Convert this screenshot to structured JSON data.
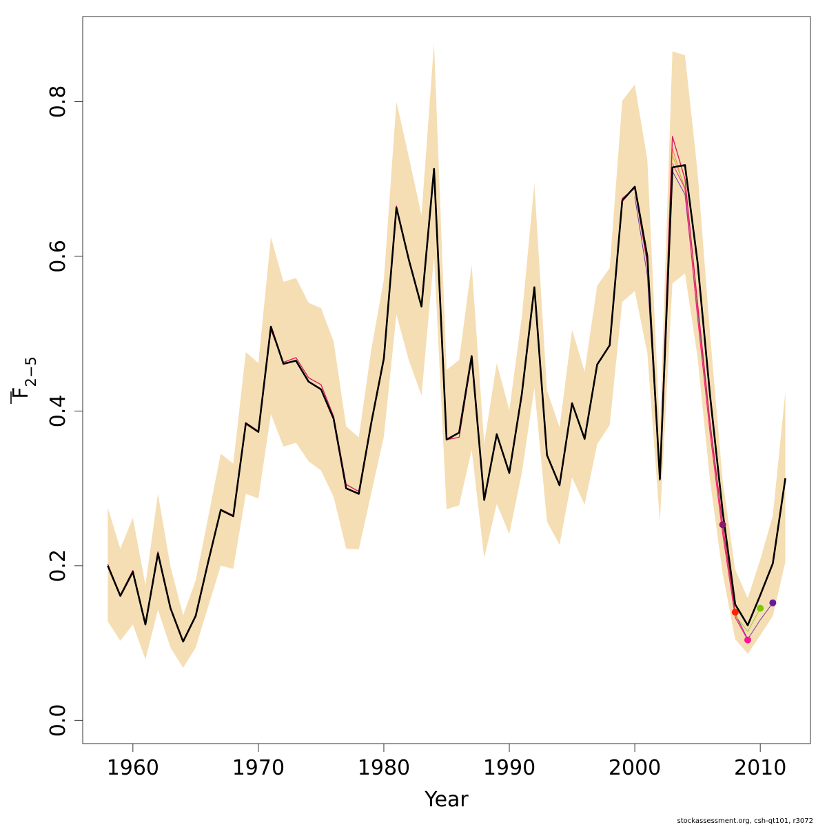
{
  "chart_data": {
    "type": "line",
    "xlabel": "Year",
    "ylabel_main": "F",
    "ylabel_subscript": "2−5",
    "xlim": [
      1956,
      2014
    ],
    "ylim": [
      -0.03,
      0.91
    ],
    "x_ticks": [
      1960,
      1970,
      1980,
      1990,
      2000,
      2010
    ],
    "x_tick_labels": [
      "1960",
      "1970",
      "1980",
      "1990",
      "2000",
      "2010"
    ],
    "y_ticks": [
      0.0,
      0.2,
      0.4,
      0.6,
      0.8
    ],
    "y_tick_labels": [
      "0.0",
      "0.2",
      "0.4",
      "0.6",
      "0.8"
    ],
    "grid": false,
    "band_color": "#f5deb3",
    "band": {
      "x": [
        1958,
        1959,
        1960,
        1961,
        1962,
        1963,
        1964,
        1965,
        1966,
        1967,
        1968,
        1969,
        1970,
        1971,
        1972,
        1973,
        1974,
        1975,
        1976,
        1977,
        1978,
        1979,
        1980,
        1981,
        1982,
        1983,
        1984,
        1985,
        1986,
        1987,
        1988,
        1989,
        1990,
        1991,
        1992,
        1993,
        1994,
        1995,
        1996,
        1997,
        1998,
        1999,
        2000,
        2001,
        2002,
        2003,
        2004,
        2005,
        2006,
        2007,
        2008,
        2009,
        2010,
        2011,
        2012
      ],
      "lower": [
        0.128,
        0.103,
        0.124,
        0.079,
        0.143,
        0.094,
        0.068,
        0.094,
        0.147,
        0.2,
        0.196,
        0.293,
        0.287,
        0.396,
        0.354,
        0.359,
        0.335,
        0.323,
        0.289,
        0.222,
        0.221,
        0.294,
        0.367,
        0.525,
        0.465,
        0.42,
        0.6,
        0.273,
        0.278,
        0.35,
        0.21,
        0.28,
        0.241,
        0.32,
        0.43,
        0.257,
        0.227,
        0.314,
        0.279,
        0.357,
        0.382,
        0.541,
        0.555,
        0.475,
        0.257,
        0.565,
        0.578,
        0.47,
        0.31,
        0.19,
        0.105,
        0.086,
        0.11,
        0.135,
        0.205
      ],
      "upper": [
        0.275,
        0.222,
        0.262,
        0.175,
        0.293,
        0.199,
        0.136,
        0.181,
        0.263,
        0.345,
        0.332,
        0.476,
        0.462,
        0.625,
        0.567,
        0.572,
        0.54,
        0.533,
        0.49,
        0.38,
        0.366,
        0.48,
        0.57,
        0.8,
        0.728,
        0.653,
        0.876,
        0.453,
        0.466,
        0.589,
        0.358,
        0.462,
        0.401,
        0.522,
        0.694,
        0.427,
        0.379,
        0.505,
        0.451,
        0.562,
        0.585,
        0.801,
        0.822,
        0.725,
        0.375,
        0.865,
        0.86,
        0.71,
        0.5,
        0.31,
        0.195,
        0.158,
        0.208,
        0.265,
        0.425
      ]
    },
    "series": [
      {
        "color": "#000000",
        "width": 2.6,
        "x": [
          1958,
          1959,
          1960,
          1961,
          1962,
          1963,
          1964,
          1965,
          1966,
          1967,
          1968,
          1969,
          1970,
          1971,
          1972,
          1973,
          1974,
          1975,
          1976,
          1977,
          1978,
          1979,
          1980,
          1981,
          1982,
          1983,
          1984,
          1985,
          1986,
          1987,
          1988,
          1989,
          1990,
          1991,
          1992,
          1993,
          1994,
          1995,
          1996,
          1997,
          1998,
          1999,
          2000,
          2001,
          2002,
          2003,
          2004,
          2005,
          2006,
          2007,
          2008,
          2009,
          2010,
          2011,
          2012
        ],
        "y": [
          0.2,
          0.161,
          0.192,
          0.124,
          0.216,
          0.145,
          0.102,
          0.135,
          0.205,
          0.272,
          0.264,
          0.384,
          0.373,
          0.509,
          0.461,
          0.465,
          0.438,
          0.428,
          0.39,
          0.3,
          0.293,
          0.385,
          0.468,
          0.663,
          0.595,
          0.535,
          0.713,
          0.363,
          0.372,
          0.471,
          0.285,
          0.37,
          0.32,
          0.422,
          0.56,
          0.343,
          0.304,
          0.41,
          0.364,
          0.46,
          0.485,
          0.672,
          0.69,
          0.6,
          0.312,
          0.715,
          0.718,
          0.593,
          0.42,
          0.27,
          0.15,
          0.123,
          0.162,
          0.203,
          0.313
        ]
      },
      {
        "color": "#d62060",
        "width": 1.4,
        "x": [
          1958,
          1959,
          1960,
          1961,
          1962,
          1963,
          1964,
          1965,
          1966,
          1967,
          1968,
          1969,
          1970,
          1971,
          1972,
          1973,
          1974,
          1975,
          1976,
          1977,
          1978,
          1979,
          1980,
          1981,
          1982,
          1983,
          1984,
          1985,
          1986,
          1987,
          1988,
          1989,
          1990,
          1991,
          1992,
          1993,
          1994,
          1995,
          1996,
          1997,
          1998,
          1999,
          2000,
          2001,
          2002,
          2003,
          2004,
          2005,
          2006,
          2007,
          2008
        ],
        "y": [
          0.202,
          0.162,
          0.194,
          0.125,
          0.218,
          0.146,
          0.103,
          0.136,
          0.206,
          0.273,
          0.265,
          0.385,
          0.374,
          0.505,
          0.463,
          0.469,
          0.443,
          0.434,
          0.393,
          0.305,
          0.296,
          0.387,
          0.47,
          0.665,
          0.596,
          0.536,
          0.713,
          0.363,
          0.366,
          0.468,
          0.286,
          0.369,
          0.319,
          0.421,
          0.558,
          0.342,
          0.305,
          0.409,
          0.365,
          0.461,
          0.485,
          0.675,
          0.688,
          0.59,
          0.315,
          0.755,
          0.7,
          0.54,
          0.385,
          0.253,
          0.14
        ]
      },
      {
        "color": "#ff7f50",
        "width": 1.0,
        "x": [
          2001,
          2002,
          2003,
          2004,
          2005,
          2006,
          2007,
          2008,
          2009
        ],
        "y": [
          0.585,
          0.318,
          0.74,
          0.685,
          0.52,
          0.37,
          0.24,
          0.135,
          0.105
        ]
      },
      {
        "color": "#6a3d9a",
        "width": 1.0,
        "x": [
          2000,
          2001,
          2002,
          2003,
          2004,
          2005,
          2006,
          2007,
          2008,
          2009,
          2010,
          2011
        ],
        "y": [
          0.677,
          0.575,
          0.31,
          0.71,
          0.68,
          0.53,
          0.38,
          0.25,
          0.138,
          0.105,
          0.13,
          0.152
        ]
      },
      {
        "color": "#9acd32",
        "width": 1.0,
        "x": [
          2003,
          2004,
          2005,
          2006,
          2007,
          2008,
          2009,
          2010
        ],
        "y": [
          0.73,
          0.69,
          0.525,
          0.375,
          0.245,
          0.136,
          0.115,
          0.145
        ]
      },
      {
        "color": "#ff1493",
        "width": 1.0,
        "x": [
          2003,
          2004,
          2005,
          2006,
          2007,
          2008,
          2009
        ],
        "y": [
          0.72,
          0.688,
          0.522,
          0.372,
          0.242,
          0.133,
          0.104
        ]
      }
    ],
    "endpoints": [
      {
        "x": 2007,
        "y": 0.253,
        "color": "#8b1a6b"
      },
      {
        "x": 2008,
        "y": 0.14,
        "color": "#ff2200"
      },
      {
        "x": 2009,
        "y": 0.104,
        "color": "#ff1493"
      },
      {
        "x": 2010,
        "y": 0.145,
        "color": "#7cc800"
      },
      {
        "x": 2011,
        "y": 0.152,
        "color": "#6a1b9a"
      }
    ]
  },
  "footnote": "stockassessment.org, csh-qt101, r3072"
}
